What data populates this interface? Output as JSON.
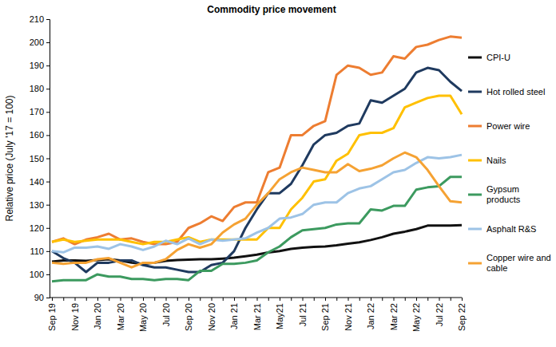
{
  "chart_data": {
    "type": "line",
    "title": "Commodity price movement",
    "y_label": "Relative price (July '17 = 100)",
    "categories": [
      "Sep 19",
      null,
      "Nov 19",
      null,
      "Jan 20",
      null,
      "Mar 20",
      null,
      "May 20",
      null,
      "Jul 20",
      null,
      "Sep 20",
      null,
      "Nov 20",
      null,
      "Jan 21",
      null,
      "Mar 21",
      null,
      "May21",
      null,
      "Jul 21",
      null,
      "Sep 21",
      null,
      "Nov 21",
      null,
      "Jan 22",
      null,
      "Mar 22",
      null,
      "May 22",
      null,
      "Jul 22",
      null,
      "Sep 22"
    ],
    "series": [
      {
        "name": "CPI-U",
        "color": "#111111",
        "values": [
          105.5,
          106,
          106,
          105.8,
          106.2,
          106.5,
          106,
          105,
          104.5,
          105,
          105.8,
          106.2,
          106.3,
          106.5,
          106.5,
          106.8,
          107.2,
          107.8,
          108.5,
          109.4,
          110,
          111,
          111.5,
          111.8,
          112,
          112.5,
          113.2,
          113.8,
          114.8,
          116,
          117.5,
          118.4,
          119.5,
          121,
          121,
          121,
          121.2
        ]
      },
      {
        "name": "Hot rolled steel",
        "color": "#1f3a5f",
        "values": [
          110,
          107,
          105,
          101,
          105,
          105,
          106,
          106,
          104,
          103,
          103,
          102,
          101,
          101,
          104,
          105,
          110,
          120,
          128,
          135,
          135,
          139,
          147,
          156,
          160,
          161,
          164,
          165,
          175,
          174,
          177,
          180,
          187,
          189,
          188,
          183,
          179
        ]
      },
      {
        "name": "Power wire",
        "color": "#ed7d31",
        "values": [
          114,
          115.5,
          113,
          115,
          116,
          117.5,
          115,
          115.5,
          114,
          113,
          113,
          114,
          120,
          122,
          125,
          123,
          129,
          131,
          131,
          144,
          146,
          160,
          160,
          164,
          166,
          186,
          190,
          189,
          186,
          187,
          194,
          193,
          198,
          199,
          201,
          202.5,
          202
        ]
      },
      {
        "name": "Nails",
        "color": "#ffc000",
        "values": [
          114,
          115,
          114,
          114.5,
          115,
          115,
          115,
          114,
          113,
          114,
          114,
          115,
          116,
          114,
          115,
          115,
          115,
          115,
          115,
          120,
          120,
          128,
          133,
          140,
          141,
          149,
          152,
          160,
          161,
          161,
          163,
          172,
          174,
          176,
          177,
          177,
          169
        ]
      },
      {
        "name": "Gypsum products",
        "color": "#3c9a5f",
        "values": [
          97,
          97.5,
          97.5,
          97.5,
          100,
          99,
          99,
          98,
          98,
          97.5,
          98,
          98,
          97.5,
          101.5,
          101.5,
          104.5,
          104.5,
          105,
          106,
          109.5,
          112,
          116,
          119,
          119.5,
          120,
          121.5,
          122,
          122,
          128,
          127.5,
          129.5,
          129.5,
          136.5,
          137.5,
          138,
          142,
          142
        ]
      },
      {
        "name": "Asphalt R&S",
        "color": "#9dc3e6",
        "values": [
          110,
          109.5,
          111.5,
          111.5,
          112,
          111,
          113,
          112,
          110.5,
          112,
          114.5,
          113,
          115.5,
          113,
          115,
          114.5,
          115,
          115.5,
          118,
          120,
          124,
          124.5,
          126,
          130,
          131,
          131,
          135,
          137,
          138,
          141,
          144,
          145,
          148,
          150.5,
          150,
          150.5,
          151.5
        ]
      },
      {
        "name": "Copper wire and cable",
        "color": "#f5a233",
        "values": [
          105,
          104.5,
          105,
          105,
          106.5,
          107,
          105,
          103,
          105,
          105,
          106.5,
          110.5,
          113,
          111.5,
          113,
          118,
          121.5,
          124,
          130,
          135,
          141,
          144,
          146,
          145,
          144,
          144,
          147.5,
          144.5,
          145.5,
          147,
          150,
          152.5,
          150.5,
          145,
          138,
          131.5,
          131
        ]
      }
    ],
    "ylim": [
      90,
      210
    ],
    "yticks": [
      90,
      100,
      110,
      120,
      130,
      140,
      150,
      160,
      170,
      180,
      190,
      200,
      210
    ],
    "grid": false,
    "legend": "right"
  }
}
